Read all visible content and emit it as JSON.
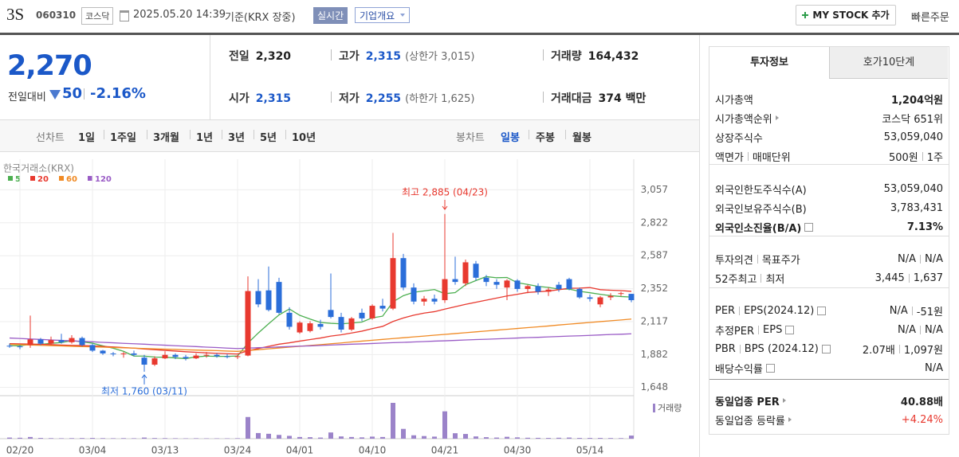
{
  "header": {
    "name": "3S",
    "code": "060310",
    "market": "코스닥",
    "datetime": "2025.05.20 14:39",
    "basis": "기준(KRX 장중)",
    "realtime": "실시간",
    "overview": "기업개요",
    "my_stock": "MY STOCK 추가",
    "quick_order": "빠른주문"
  },
  "price": {
    "current": "2,270",
    "change_label": "전일대비",
    "change": "50",
    "change_rate": "-2.16%"
  },
  "summary": [
    {
      "label": "전일",
      "value": "2,320"
    },
    {
      "label": "고가",
      "value": "2,315",
      "extra": "(상한가 3,015)"
    },
    {
      "label": "거래량",
      "value": "164,432"
    },
    {
      "label": "시가",
      "value": "2,315"
    },
    {
      "label": "저가",
      "value": "2,255",
      "extra": "(하한가 1,625)"
    },
    {
      "label": "거래대금",
      "value": "374 백만"
    }
  ],
  "chart_tabs": {
    "line_label": "선차트",
    "line": [
      "1일",
      "1주일",
      "3개월",
      "1년",
      "3년",
      "5년",
      "10년"
    ],
    "candle_label": "봉차트",
    "candle": [
      "일봉",
      "주봉",
      "월봉"
    ]
  },
  "chart_data": {
    "type": "candlestick",
    "source": "한국거래소(KRX)",
    "categories": [
      null,
      "02/20",
      null,
      null,
      null,
      null,
      null,
      null,
      "03/04",
      null,
      null,
      null,
      null,
      null,
      null,
      "03/13",
      null,
      null,
      null,
      null,
      null,
      null,
      "03/24",
      null,
      null,
      null,
      null,
      null,
      "04/01",
      null,
      null,
      null,
      null,
      null,
      null,
      "04/10",
      null,
      null,
      null,
      null,
      null,
      null,
      "04/21",
      null,
      null,
      null,
      null,
      null,
      null,
      "04/30",
      null,
      null,
      null,
      null,
      null,
      null,
      "05/14",
      null,
      null,
      null,
      null
    ],
    "open": [
      1945,
      1940,
      1950,
      1990,
      1960,
      1985,
      1970,
      2000,
      1950,
      1910,
      1890,
      1885,
      1890,
      1860,
      1810,
      1855,
      1880,
      1865,
      1855,
      1875,
      1880,
      1870,
      1865,
      1875,
      2335,
      2340,
      2400,
      2180,
      2040,
      2050,
      2100,
      2200,
      2150,
      2060,
      2180,
      2140,
      2230,
      2210,
      2570,
      2360,
      2260,
      2280,
      2270,
      2420,
      2390,
      2530,
      2430,
      2400,
      2360,
      2410,
      2350,
      2370,
      2330,
      2380,
      2420,
      2350,
      2290,
      2240,
      2290,
      2320,
      2315
    ],
    "high": [
      1960,
      1950,
      2160,
      2000,
      2010,
      2030,
      2020,
      2010,
      1960,
      1915,
      1900,
      1900,
      1910,
      1880,
      1870,
      1905,
      1890,
      1880,
      1890,
      1900,
      1890,
      1885,
      1880,
      2440,
      2420,
      2510,
      2430,
      2220,
      2120,
      2120,
      2130,
      2460,
      2180,
      2150,
      2210,
      2240,
      2280,
      2750,
      2600,
      2390,
      2300,
      2310,
      2885,
      2580,
      2560,
      2550,
      2450,
      2420,
      2420,
      2420,
      2380,
      2390,
      2360,
      2400,
      2430,
      2360,
      2310,
      2300,
      2320,
      2330,
      2315
    ],
    "low": [
      1930,
      1920,
      1930,
      1950,
      1950,
      1960,
      1960,
      1940,
      1900,
      1880,
      1870,
      1860,
      1870,
      1760,
      1800,
      1850,
      1850,
      1840,
      1850,
      1860,
      1860,
      1855,
      1850,
      1870,
      2220,
      2190,
      2170,
      2060,
      2030,
      2040,
      2060,
      2140,
      2040,
      2050,
      2120,
      2130,
      2190,
      2200,
      2340,
      2240,
      2230,
      2240,
      2250,
      2380,
      2370,
      2410,
      2370,
      2350,
      2270,
      2330,
      2320,
      2310,
      2300,
      2330,
      2340,
      2280,
      2260,
      2220,
      2270,
      2300,
      2255
    ],
    "close": [
      1940,
      1935,
      1990,
      1960,
      1985,
      1970,
      2000,
      1950,
      1910,
      1890,
      1885,
      1890,
      1880,
      1810,
      1855,
      1880,
      1865,
      1855,
      1875,
      1880,
      1870,
      1865,
      1870,
      2335,
      2240,
      2200,
      2180,
      2080,
      2110,
      2105,
      2080,
      2150,
      2060,
      2140,
      2140,
      2230,
      2210,
      2570,
      2360,
      2260,
      2280,
      2260,
      2420,
      2400,
      2540,
      2430,
      2400,
      2380,
      2410,
      2350,
      2370,
      2330,
      2345,
      2350,
      2350,
      2290,
      2280,
      2290,
      2300,
      2320,
      2270
    ],
    "up_color": "#e8392f",
    "down_color": "#2b6ed9",
    "series": [
      {
        "name": "5",
        "color": "#4caf50",
        "values": [
          1945,
          1945,
          1955,
          1955,
          1962,
          1968,
          1981,
          1973,
          1963,
          1944,
          1927,
          1905,
          1871,
          1871,
          1864,
          1863,
          1858,
          1853,
          1866,
          1871,
          1869,
          1869,
          1872,
          1964,
          2036,
          2102,
          2165,
          2207,
          2162,
          2135,
          2111,
          2105,
          2101,
          2107,
          2114,
          2144,
          2156,
          2258,
          2302,
          2326,
          2336,
          2346,
          2316,
          2324,
          2380,
          2410,
          2438,
          2430,
          2432,
          2394,
          2382,
          2368,
          2361,
          2349,
          2349,
          2333,
          2323,
          2312,
          2302,
          2296,
          2292
        ]
      },
      {
        "name": "20",
        "color": "#e8392f",
        "values": [
          1960,
          1958,
          1957,
          1955,
          1953,
          1950,
          1948,
          1946,
          1944,
          1940,
          1936,
          1932,
          1928,
          1922,
          1917,
          1912,
          1907,
          1902,
          1898,
          1894,
          1891,
          1888,
          1886,
          1909,
          1925,
          1941,
          1956,
          1966,
          1978,
          1989,
          2000,
          2014,
          2023,
          2036,
          2049,
          2067,
          2083,
          2118,
          2143,
          2163,
          2178,
          2188,
          2206,
          2223,
          2240,
          2255,
          2270,
          2285,
          2300,
          2312,
          2325,
          2330,
          2335,
          2345,
          2355,
          2356,
          2360,
          2345,
          2341,
          2338,
          2333
        ]
      },
      {
        "name": "60",
        "color": "#f08a24",
        "values": [
          1955,
          1953,
          1950,
          1948,
          1946,
          1944,
          1941,
          1939,
          1937,
          1935,
          1932,
          1930,
          1928,
          1925,
          1923,
          1921,
          1919,
          1916,
          1914,
          1912,
          1910,
          1907,
          1905,
          1911,
          1917,
          1923,
          1929,
          1935,
          1941,
          1947,
          1953,
          1959,
          1965,
          1972,
          1978,
          1984,
          1990,
          1996,
          2002,
          2008,
          2014,
          2020,
          2026,
          2032,
          2038,
          2044,
          2050,
          2056,
          2062,
          2068,
          2074,
          2080,
          2086,
          2093,
          2099,
          2105,
          2111,
          2117,
          2123,
          2129,
          2135
        ]
      },
      {
        "name": "120",
        "color": "#9a5cc6",
        "values": [
          2000,
          1997,
          1993,
          1990,
          1986,
          1983,
          1980,
          1976,
          1973,
          1969,
          1966,
          1962,
          1959,
          1956,
          1952,
          1949,
          1945,
          1942,
          1939,
          1935,
          1932,
          1928,
          1925,
          1928,
          1931,
          1933,
          1936,
          1939,
          1942,
          1944,
          1947,
          1950,
          1953,
          1956,
          1958,
          1961,
          1964,
          1967,
          1969,
          1972,
          1975,
          1978,
          1980,
          1983,
          1986,
          1989,
          1991,
          1994,
          1997,
          2000,
          2003,
          2005,
          2008,
          2011,
          2014,
          2016,
          2019,
          2022,
          2025,
          2027,
          2030
        ]
      }
    ],
    "volume_label": "거래량",
    "volume_color": "#9b83c9",
    "volume": [
      60000,
      50000,
      90000,
      40000,
      30000,
      25000,
      30000,
      35000,
      40000,
      30000,
      25000,
      30000,
      25000,
      60000,
      35000,
      30000,
      25000,
      20000,
      25000,
      20000,
      20000,
      20000,
      25000,
      1150000,
      300000,
      260000,
      200000,
      150000,
      90000,
      80000,
      60000,
      330000,
      120000,
      90000,
      70000,
      110000,
      90000,
      1900000,
      520000,
      180000,
      140000,
      110000,
      1450000,
      290000,
      250000,
      120000,
      80000,
      60000,
      100000,
      70000,
      50000,
      45000,
      40000,
      50000,
      60000,
      40000,
      40000,
      40000,
      35000,
      30000,
      164432
    ],
    "ylim": [
      1600,
      3190
    ],
    "yticks": [
      {
        "value": 1648,
        "label": "1,648"
      },
      {
        "value": 1882,
        "label": "1,882"
      },
      {
        "value": 2117,
        "label": "2,117"
      },
      {
        "value": 2352,
        "label": "2,352"
      },
      {
        "value": 2587,
        "label": "2,587"
      },
      {
        "value": 2822,
        "label": "2,822"
      },
      {
        "value": 3057,
        "label": "3,057"
      }
    ],
    "annotations": [
      {
        "text": "최고 2,885 (04/23)",
        "color": "#e8392f"
      },
      {
        "text": "최저 1,760 (03/11)",
        "color": "#2b6ed9"
      }
    ],
    "grid": true
  },
  "info": {
    "tabs": [
      "투자정보",
      "호가10단계"
    ],
    "rows": [
      {
        "label": [
          "시가총액"
        ],
        "value": [
          "1,204억원"
        ]
      },
      {
        "label": [
          "시가총액순위"
        ],
        "value": [
          "코스닥 651위"
        ]
      },
      {
        "label": [
          "상장주식수"
        ],
        "value": [
          "53,059,040"
        ]
      },
      {
        "label": [
          "액면가",
          "매매단위"
        ],
        "value": [
          "500원",
          "1주"
        ]
      },
      {
        "label": [
          "외국인한도주식수(A)"
        ],
        "value": [
          "53,059,040"
        ]
      },
      {
        "label": [
          "외국인보유주식수(B)"
        ],
        "value": [
          "3,783,431"
        ]
      },
      {
        "label": [
          "외국인소진율(B/A)"
        ],
        "value": [
          "7.13%"
        ]
      },
      {
        "label": [
          "투자의견",
          "목표주가"
        ],
        "value": [
          "N/A",
          "N/A"
        ]
      },
      {
        "label": [
          "52주최고",
          "최저"
        ],
        "value": [
          "3,445",
          "1,637"
        ]
      },
      {
        "label": [
          "PER",
          "EPS(2024.12)"
        ],
        "value": [
          "N/A",
          "-51원"
        ]
      },
      {
        "label": [
          "추정PER",
          "EPS"
        ],
        "value": [
          "N/A",
          "N/A"
        ]
      },
      {
        "label": [
          "PBR",
          "BPS (2024.12)"
        ],
        "value": [
          "2.07배",
          "1,097원"
        ]
      },
      {
        "label": [
          "배당수익률"
        ],
        "value": [
          "N/A"
        ]
      },
      {
        "label": [
          "동일업종 PER"
        ],
        "value": [
          "40.88배"
        ]
      },
      {
        "label": [
          "동일업종 등락률"
        ],
        "value": [
          "+4.24%"
        ]
      }
    ]
  }
}
